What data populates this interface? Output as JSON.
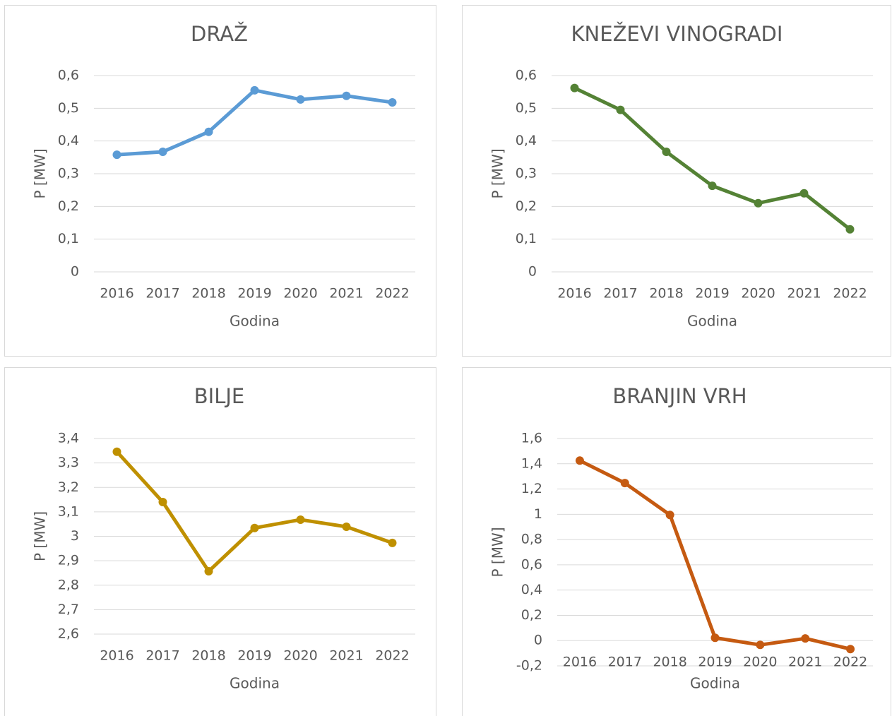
{
  "chart_data": [
    {
      "type": "line",
      "title": "DRAŽ",
      "xlabel": "Godina",
      "ylabel": "P [MW]",
      "categories": [
        "2016",
        "2017",
        "2018",
        "2019",
        "2020",
        "2021",
        "2022"
      ],
      "values": [
        0.358,
        0.367,
        0.428,
        0.555,
        0.527,
        0.538,
        0.518
      ],
      "color": "#5b9bd5",
      "ylim": [
        0,
        0.6
      ],
      "yticks": [
        0,
        {
          "value": 0.1,
          "label": "0,1"
        },
        {
          "value": 0.2,
          "label": "0,2"
        },
        {
          "value": 0.3,
          "label": "0,3"
        },
        {
          "value": 0.4,
          "label": "0,4"
        },
        {
          "value": 0.5,
          "label": "0,5"
        },
        {
          "value": 0.6,
          "label": "0,6"
        }
      ],
      "grid": true
    },
    {
      "type": "line",
      "title": "KNEŽEVI VINOGRADI",
      "xlabel": "Godina",
      "ylabel": "P [MW]",
      "categories": [
        "2016",
        "2017",
        "2018",
        "2019",
        "2020",
        "2021",
        "2022"
      ],
      "values": [
        0.562,
        0.495,
        0.367,
        0.263,
        0.21,
        0.24,
        0.13
      ],
      "color": "#548235",
      "ylim": [
        0,
        0.6
      ],
      "yticks": [
        0,
        {
          "value": 0.1,
          "label": "0,1"
        },
        {
          "value": 0.2,
          "label": "0,2"
        },
        {
          "value": 0.3,
          "label": "0,3"
        },
        {
          "value": 0.4,
          "label": "0,4"
        },
        {
          "value": 0.5,
          "label": "0,5"
        },
        {
          "value": 0.6,
          "label": "0,6"
        }
      ],
      "grid": true
    },
    {
      "type": "line",
      "title": "BILJE",
      "xlabel": "Godina",
      "ylabel": "P [MW]",
      "categories": [
        "2016",
        "2017",
        "2018",
        "2019",
        "2020",
        "2021",
        "2022"
      ],
      "values": [
        3.346,
        3.14,
        2.857,
        3.034,
        3.068,
        3.039,
        2.973
      ],
      "color": "#bf9000",
      "ylim": [
        2.6,
        3.4
      ],
      "yticks": [
        {
          "value": 2.6,
          "label": "2,6"
        },
        {
          "value": 2.7,
          "label": "2,7"
        },
        {
          "value": 2.8,
          "label": "2,8"
        },
        {
          "value": 2.9,
          "label": "2,9"
        },
        3,
        {
          "value": 3.1,
          "label": "3,1"
        },
        {
          "value": 3.2,
          "label": "3,2"
        },
        {
          "value": 3.3,
          "label": "3,3"
        },
        {
          "value": 3.4,
          "label": "3,4"
        }
      ],
      "grid": true
    },
    {
      "type": "line",
      "title": "BRANJIN VRH",
      "xlabel": "Godina",
      "ylabel": "P [MW]",
      "categories": [
        "2016",
        "2017",
        "2018",
        "2019",
        "2020",
        "2021",
        "2022"
      ],
      "values": [
        1.425,
        1.247,
        0.995,
        0.022,
        -0.034,
        0.017,
        -0.067
      ],
      "color": "#c55a11",
      "ylim": [
        -0.2,
        1.6
      ],
      "yticks": [
        {
          "value": -0.2,
          "label": "-0,2"
        },
        0,
        {
          "value": 0.2,
          "label": "0,2"
        },
        {
          "value": 0.4,
          "label": "0,4"
        },
        {
          "value": 0.6,
          "label": "0,6"
        },
        {
          "value": 0.8,
          "label": "0,8"
        },
        1,
        {
          "value": 1.2,
          "label": "1,2"
        },
        {
          "value": 1.4,
          "label": "1,4"
        },
        {
          "value": 1.6,
          "label": "1,6"
        }
      ],
      "grid": true
    }
  ]
}
